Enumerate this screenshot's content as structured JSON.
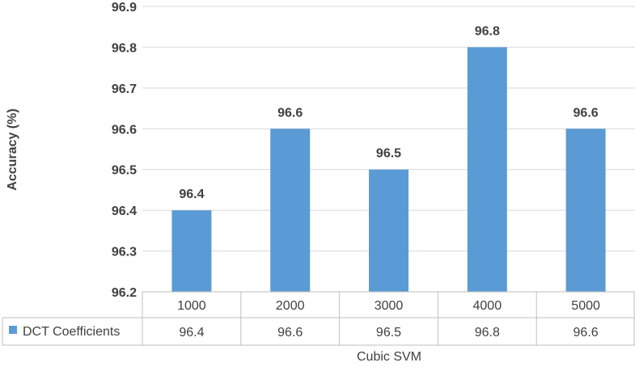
{
  "chart_data": {
    "type": "bar",
    "categories": [
      "1000",
      "2000",
      "3000",
      "4000",
      "5000"
    ],
    "series": [
      {
        "name": "DCT Coefficients",
        "values": [
          96.4,
          96.6,
          96.5,
          96.8,
          96.6
        ],
        "color": "#5b9bd5"
      }
    ],
    "data_labels": [
      "96.4",
      "96.6",
      "96.5",
      "96.8",
      "96.6"
    ],
    "table_values": [
      "96.4",
      "96.6",
      "96.5",
      "96.8",
      "96.6"
    ],
    "yticks": [
      "96.2",
      "96.3",
      "96.4",
      "96.5",
      "96.6",
      "96.7",
      "96.8",
      "96.9"
    ],
    "ylim": [
      96.2,
      96.9
    ],
    "ylabel": "Accuracy (%)",
    "xlabel": "Cubic SVM",
    "grid": true,
    "legend": "data-table"
  }
}
